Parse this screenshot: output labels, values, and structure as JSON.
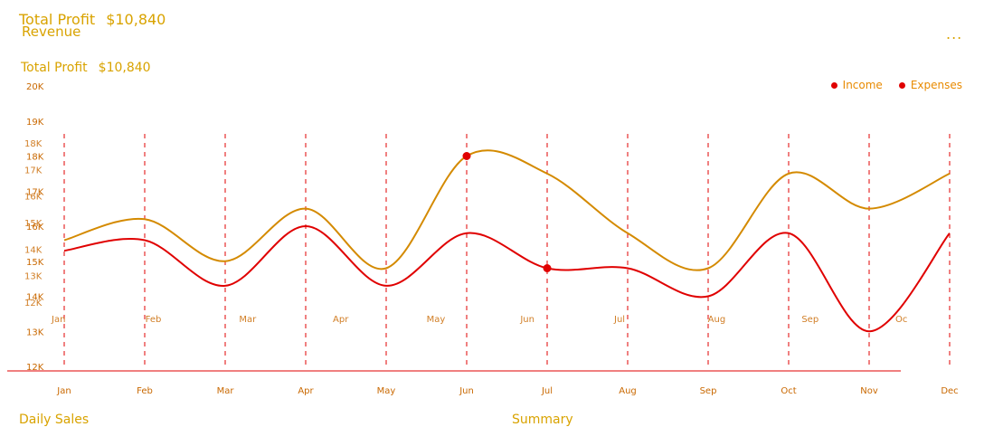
{
  "header": {
    "ghost_title_a": "Total Profit",
    "ghost_title_b": "$10,840",
    "title": "Revenue",
    "more_icon": "...",
    "subtitle_label": "Total Profit",
    "subtitle_value": "$10,840"
  },
  "legend": [
    {
      "name": "Income",
      "color": "#e00000"
    },
    {
      "name": "Expenses",
      "color": "#e00000"
    }
  ],
  "bottom": {
    "left_title": "Daily Sales",
    "right_title": "Summary"
  },
  "chart_data": {
    "type": "line",
    "categories": [
      "Jan",
      "Feb",
      "Mar",
      "Apr",
      "May",
      "Jun",
      "Jul",
      "Aug",
      "Sep",
      "Oct",
      "Nov",
      "Dec"
    ],
    "series": [
      {
        "name": "Income",
        "color": "#d48a00",
        "values": [
          15.6,
          16.2,
          15.0,
          16.5,
          14.8,
          18.0,
          17.5,
          15.8,
          14.8,
          17.5,
          16.5,
          17.5
        ],
        "highlight_index": 5
      },
      {
        "name": "Expenses",
        "color": "#e00000",
        "values": [
          15.3,
          15.6,
          14.3,
          16.0,
          14.3,
          15.8,
          14.8,
          14.8,
          14.0,
          15.8,
          13.0,
          15.8
        ],
        "highlight_index": 6
      }
    ],
    "ylim": [
      12,
      20
    ],
    "yticks": [
      "20K",
      "19K",
      "18K",
      "17K",
      "16K",
      "15K",
      "14K",
      "13K",
      "12K"
    ],
    "ghost_yticks_right_column": [
      "20K",
      "19K",
      "18K",
      "17K",
      "16K",
      "15K",
      "14K",
      "13K",
      "12K"
    ],
    "ghost_yticks": [
      "18K",
      "17K",
      "16K",
      "15K",
      "14K",
      "13K",
      "12K"
    ],
    "ghost_xticks": [
      "Jan",
      "Feb",
      "Mar",
      "Apr",
      "May",
      "Jun",
      "Jul",
      "Aug",
      "Sep",
      "Oc"
    ],
    "grid": "vertical-dashed",
    "legend_position": "top-right"
  }
}
